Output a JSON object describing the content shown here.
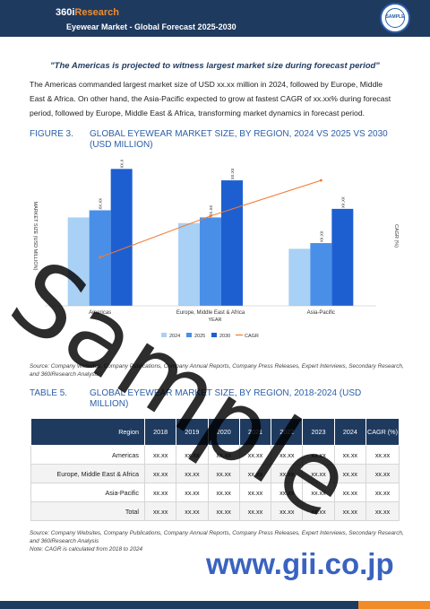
{
  "header": {
    "logo_part1": "360i",
    "logo_part2": "Research",
    "title": "Eyewear Market - Global Forecast 2025-2030",
    "badge_text": "SAMPLE"
  },
  "quote": "\"The Americas is projected to witness largest market size during forecast period\"",
  "intro": "The Americas commanded largest market size of USD xx.xx million in 2024, followed by Europe, Middle East & Africa. On other hand, the Asia-Pacific expected to grow at fastest CAGR of xx.xx% during forecast period, followed by Europe, Middle East & Africa, transforming market dynamics in forecast period.",
  "figure": {
    "label": "FIGURE 3.",
    "title": "GLOBAL EYEWEAR MARKET SIZE, BY REGION, 2024 VS 2025 VS 2030 (USD MILLION)"
  },
  "chart_data": {
    "type": "bar",
    "title": "GLOBAL EYEWEAR MARKET SIZE, BY REGION, 2024 VS 2025 VS 2030 (USD MILLION)",
    "categories": [
      "Americas",
      "Europe, Middle East & Africa",
      "Asia-Pacific"
    ],
    "series": [
      {
        "name": "2024",
        "values": [
          62,
          58,
          40
        ]
      },
      {
        "name": "2025",
        "values": [
          67,
          62,
          44
        ]
      },
      {
        "name": "2030",
        "values": [
          96,
          88,
          68
        ]
      }
    ],
    "cagr": [
      34,
      63,
      88
    ],
    "data_label": "xx.xx",
    "xlabel": "YEAR",
    "ylabel": "MARKET SIZE (USD MILLION)",
    "y2label": "CAGR (%)",
    "legend": [
      "2024",
      "2025",
      "2030",
      "CAGR"
    ],
    "ylim": [
      0,
      100
    ],
    "colors": {
      "2024": "#a9d0f5",
      "2025": "#4a8fe7",
      "2030": "#1d5fd1",
      "cagr": "#f07a30"
    }
  },
  "source1": "Source: Company Websites, Company Publications, Company Annual Reports, Company Press Releases, Expert Interviews, Secondary Research, and 360iResearch Analysis",
  "table": {
    "label": "TABLE 5.",
    "title": "GLOBAL EYEWEAR MARKET SIZE, BY REGION, 2018-2024 (USD MILLION)",
    "headers": [
      "Region",
      "2018",
      "2019",
      "2020",
      "2021",
      "2022",
      "2023",
      "2024",
      "CAGR (%)"
    ],
    "rows": [
      [
        "Americas",
        "xx.xx",
        "xx.xx",
        "xx.xx",
        "xx.xx",
        "xx.xx",
        "xx.xx",
        "xx.xx",
        "xx.xx"
      ],
      [
        "Europe, Middle East & Africa",
        "xx.xx",
        "xx.xx",
        "xx.xx",
        "xx.xx",
        "xx.xx",
        "xx.xx",
        "xx.xx",
        "xx.xx"
      ],
      [
        "Asia-Pacific",
        "xx.xx",
        "xx.xx",
        "xx.xx",
        "xx.xx",
        "xx.xx",
        "xx.xx",
        "xx.xx",
        "xx.xx"
      ],
      [
        "Total",
        "xx.xx",
        "xx.xx",
        "xx.xx",
        "xx.xx",
        "xx.xx",
        "xx.xx",
        "xx.xx",
        "xx.xx"
      ]
    ]
  },
  "source2_line1": "Source: Company Websites, Company Publications, Company Annual Reports, Company Press Releases, Expert Interviews, Secondary Research, and 360iResearch Analysis",
  "source2_line2": "Note: CAGR is calculated from 2018 to 2024",
  "watermark": "Sample",
  "site": "www.gii.co.jp",
  "colors": {
    "navy": "#1f3a5f",
    "accent": "#f28c28",
    "blue": "#2b5fa8"
  }
}
